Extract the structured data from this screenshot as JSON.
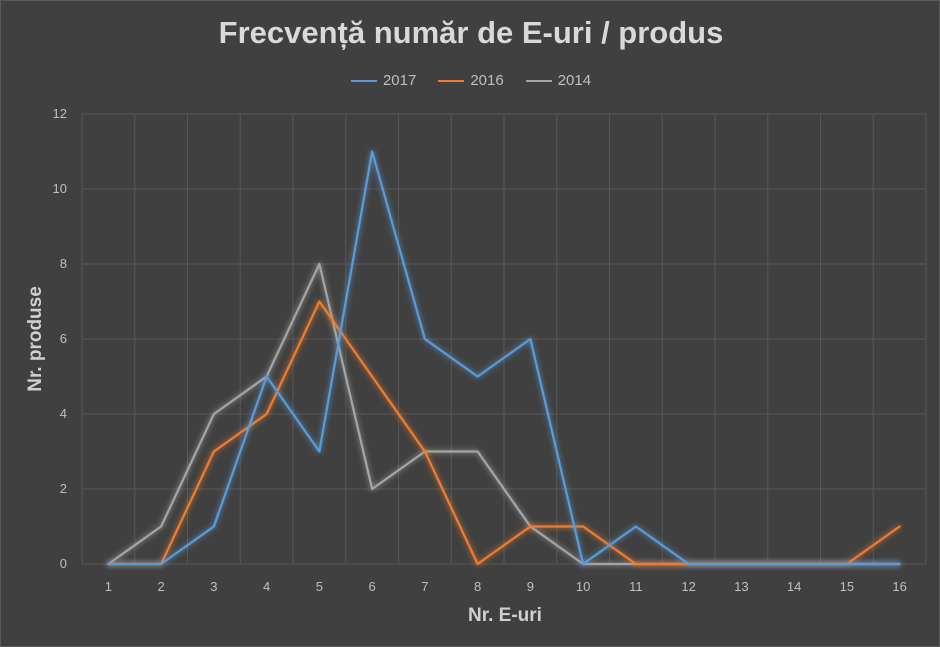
{
  "chart_data": {
    "type": "line",
    "title": "Frecvență număr de E-uri / produs",
    "xlabel": "Nr. E-uri",
    "ylabel": "Nr. produse",
    "categories": [
      "1",
      "2",
      "3",
      "4",
      "5",
      "6",
      "7",
      "8",
      "9",
      "10",
      "11",
      "12",
      "13",
      "14",
      "15",
      "16"
    ],
    "ylim": [
      0,
      12
    ],
    "yticks": [
      0,
      2,
      4,
      6,
      8,
      10,
      12
    ],
    "grid": true,
    "legend_position": "top",
    "series": [
      {
        "name": "2017",
        "color": "#5b9bd5",
        "values": [
          0,
          0,
          1,
          5,
          3,
          11,
          6,
          5,
          6,
          0,
          1,
          0,
          0,
          0,
          0,
          0
        ]
      },
      {
        "name": "2016",
        "color": "#ed7d31",
        "values": [
          0,
          0,
          3,
          4,
          7,
          5,
          3,
          0,
          1,
          1,
          0,
          0,
          0,
          0,
          0,
          1
        ]
      },
      {
        "name": "2014",
        "color": "#a5a5a5",
        "values": [
          0,
          1,
          4,
          5,
          8,
          2,
          3,
          3,
          1,
          0,
          0,
          0,
          0,
          0,
          0,
          0
        ]
      }
    ]
  }
}
